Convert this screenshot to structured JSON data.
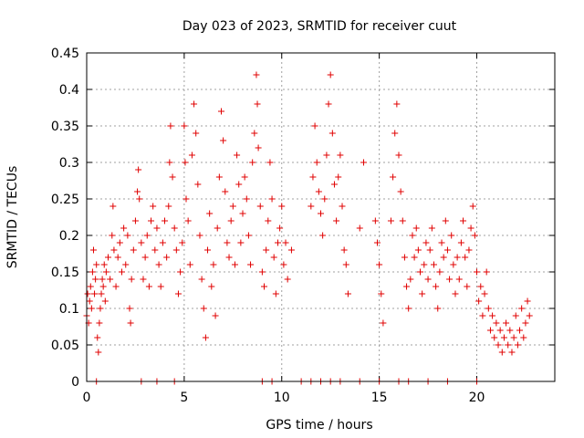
{
  "chart_data": {
    "type": "scatter",
    "title": "Day 023 of 2023, SRMTID for receiver cuut",
    "xlabel": "GPS time / hours",
    "ylabel": "SRMTID / TECUs",
    "xlim": [
      0,
      24
    ],
    "ylim": [
      0,
      0.45
    ],
    "xticks": [
      0,
      5,
      10,
      15,
      20
    ],
    "xtick_labels": [
      "0",
      "5",
      "10",
      "15",
      "20"
    ],
    "yticks": [
      0,
      0.05,
      0.1,
      0.15,
      0.2,
      0.25,
      0.3,
      0.35,
      0.4,
      0.45
    ],
    "ytick_labels": [
      "0",
      "0.05",
      "0.1",
      "0.15",
      "0.2",
      "0.25",
      "0.3",
      "0.35",
      "0.4",
      "0.45"
    ],
    "grid": true,
    "marker": "+",
    "color": "#e00000",
    "series": [
      {
        "name": "SRMTID",
        "points": [
          [
            0.0,
            0.09
          ],
          [
            0.05,
            0.12
          ],
          [
            0.1,
            0.08
          ],
          [
            0.15,
            0.11
          ],
          [
            0.2,
            0.13
          ],
          [
            0.25,
            0.1
          ],
          [
            0.3,
            0.15
          ],
          [
            0.35,
            0.18
          ],
          [
            0.4,
            0.12
          ],
          [
            0.45,
            0.14
          ],
          [
            0.5,
            0.16
          ],
          [
            0.55,
            0.06
          ],
          [
            0.6,
            0.04
          ],
          [
            0.65,
            0.08
          ],
          [
            0.7,
            0.1
          ],
          [
            0.75,
            0.12
          ],
          [
            0.8,
            0.14
          ],
          [
            0.85,
            0.13
          ],
          [
            0.9,
            0.16
          ],
          [
            0.95,
            0.11
          ],
          [
            1.0,
            0.15
          ],
          [
            1.1,
            0.17
          ],
          [
            1.2,
            0.14
          ],
          [
            1.3,
            0.2
          ],
          [
            1.35,
            0.24
          ],
          [
            1.4,
            0.18
          ],
          [
            1.5,
            0.13
          ],
          [
            1.6,
            0.17
          ],
          [
            1.7,
            0.19
          ],
          [
            1.8,
            0.15
          ],
          [
            1.9,
            0.21
          ],
          [
            2.0,
            0.16
          ],
          [
            2.1,
            0.2
          ],
          [
            2.2,
            0.1
          ],
          [
            2.25,
            0.08
          ],
          [
            2.3,
            0.14
          ],
          [
            2.4,
            0.18
          ],
          [
            2.5,
            0.22
          ],
          [
            2.6,
            0.26
          ],
          [
            2.65,
            0.29
          ],
          [
            2.7,
            0.25
          ],
          [
            2.8,
            0.19
          ],
          [
            2.9,
            0.14
          ],
          [
            3.0,
            0.17
          ],
          [
            3.1,
            0.2
          ],
          [
            3.2,
            0.13
          ],
          [
            3.3,
            0.22
          ],
          [
            3.4,
            0.24
          ],
          [
            3.5,
            0.18
          ],
          [
            3.6,
            0.21
          ],
          [
            3.7,
            0.16
          ],
          [
            3.8,
            0.13
          ],
          [
            3.9,
            0.19
          ],
          [
            4.0,
            0.22
          ],
          [
            4.1,
            0.17
          ],
          [
            4.2,
            0.24
          ],
          [
            4.25,
            0.3
          ],
          [
            4.3,
            0.35
          ],
          [
            4.4,
            0.28
          ],
          [
            4.5,
            0.21
          ],
          [
            4.6,
            0.18
          ],
          [
            4.7,
            0.12
          ],
          [
            4.8,
            0.15
          ],
          [
            4.9,
            0.19
          ],
          [
            5.0,
            0.35
          ],
          [
            5.05,
            0.3
          ],
          [
            5.1,
            0.25
          ],
          [
            5.2,
            0.22
          ],
          [
            5.3,
            0.16
          ],
          [
            5.4,
            0.31
          ],
          [
            5.5,
            0.38
          ],
          [
            5.6,
            0.34
          ],
          [
            5.7,
            0.27
          ],
          [
            5.8,
            0.2
          ],
          [
            5.9,
            0.14
          ],
          [
            6.0,
            0.1
          ],
          [
            6.1,
            0.06
          ],
          [
            6.2,
            0.18
          ],
          [
            6.3,
            0.23
          ],
          [
            6.4,
            0.13
          ],
          [
            6.5,
            0.16
          ],
          [
            6.6,
            0.09
          ],
          [
            6.7,
            0.21
          ],
          [
            6.8,
            0.28
          ],
          [
            6.9,
            0.37
          ],
          [
            7.0,
            0.33
          ],
          [
            7.1,
            0.26
          ],
          [
            7.2,
            0.19
          ],
          [
            7.3,
            0.17
          ],
          [
            7.4,
            0.22
          ],
          [
            7.5,
            0.24
          ],
          [
            7.6,
            0.16
          ],
          [
            7.7,
            0.31
          ],
          [
            7.8,
            0.27
          ],
          [
            7.9,
            0.19
          ],
          [
            8.0,
            0.23
          ],
          [
            8.1,
            0.28
          ],
          [
            8.2,
            0.25
          ],
          [
            8.3,
            0.2
          ],
          [
            8.4,
            0.16
          ],
          [
            8.5,
            0.3
          ],
          [
            8.6,
            0.34
          ],
          [
            8.7,
            0.42
          ],
          [
            8.75,
            0.38
          ],
          [
            8.8,
            0.32
          ],
          [
            8.9,
            0.24
          ],
          [
            9.0,
            0.15
          ],
          [
            9.1,
            0.13
          ],
          [
            9.2,
            0.18
          ],
          [
            9.3,
            0.22
          ],
          [
            9.4,
            0.3
          ],
          [
            9.5,
            0.25
          ],
          [
            9.6,
            0.17
          ],
          [
            9.7,
            0.12
          ],
          [
            9.8,
            0.19
          ],
          [
            9.9,
            0.21
          ],
          [
            10.0,
            0.24
          ],
          [
            10.1,
            0.16
          ],
          [
            10.2,
            0.19
          ],
          [
            10.3,
            0.14
          ],
          [
            10.5,
            0.18
          ],
          [
            11.5,
            0.24
          ],
          [
            11.6,
            0.28
          ],
          [
            11.7,
            0.35
          ],
          [
            11.8,
            0.3
          ],
          [
            11.9,
            0.26
          ],
          [
            12.0,
            0.23
          ],
          [
            12.1,
            0.2
          ],
          [
            12.2,
            0.25
          ],
          [
            12.3,
            0.31
          ],
          [
            12.4,
            0.38
          ],
          [
            12.5,
            0.42
          ],
          [
            12.6,
            0.34
          ],
          [
            12.7,
            0.27
          ],
          [
            12.8,
            0.22
          ],
          [
            12.9,
            0.28
          ],
          [
            13.0,
            0.31
          ],
          [
            13.1,
            0.24
          ],
          [
            13.2,
            0.18
          ],
          [
            13.3,
            0.16
          ],
          [
            13.4,
            0.12
          ],
          [
            14.0,
            0.21
          ],
          [
            14.2,
            0.3
          ],
          [
            14.8,
            0.22
          ],
          [
            14.9,
            0.19
          ],
          [
            15.0,
            0.16
          ],
          [
            15.1,
            0.12
          ],
          [
            15.2,
            0.08
          ],
          [
            15.6,
            0.22
          ],
          [
            15.7,
            0.28
          ],
          [
            15.8,
            0.34
          ],
          [
            15.9,
            0.38
          ],
          [
            16.0,
            0.31
          ],
          [
            16.1,
            0.26
          ],
          [
            16.2,
            0.22
          ],
          [
            16.3,
            0.17
          ],
          [
            16.4,
            0.13
          ],
          [
            16.5,
            0.1
          ],
          [
            16.6,
            0.14
          ],
          [
            16.7,
            0.2
          ],
          [
            16.8,
            0.17
          ],
          [
            16.9,
            0.21
          ],
          [
            17.0,
            0.18
          ],
          [
            17.1,
            0.15
          ],
          [
            17.2,
            0.12
          ],
          [
            17.3,
            0.16
          ],
          [
            17.4,
            0.19
          ],
          [
            17.5,
            0.14
          ],
          [
            17.6,
            0.18
          ],
          [
            17.7,
            0.21
          ],
          [
            17.8,
            0.16
          ],
          [
            17.9,
            0.13
          ],
          [
            18.0,
            0.1
          ],
          [
            18.1,
            0.15
          ],
          [
            18.2,
            0.19
          ],
          [
            18.3,
            0.17
          ],
          [
            18.4,
            0.22
          ],
          [
            18.5,
            0.18
          ],
          [
            18.6,
            0.14
          ],
          [
            18.7,
            0.2
          ],
          [
            18.8,
            0.16
          ],
          [
            18.9,
            0.12
          ],
          [
            19.0,
            0.17
          ],
          [
            19.1,
            0.14
          ],
          [
            19.2,
            0.19
          ],
          [
            19.3,
            0.22
          ],
          [
            19.4,
            0.17
          ],
          [
            19.5,
            0.13
          ],
          [
            19.6,
            0.18
          ],
          [
            19.7,
            0.21
          ],
          [
            19.8,
            0.24
          ],
          [
            19.9,
            0.2
          ],
          [
            20.0,
            0.15
          ],
          [
            20.1,
            0.11
          ],
          [
            20.2,
            0.13
          ],
          [
            20.3,
            0.09
          ],
          [
            20.4,
            0.12
          ],
          [
            20.5,
            0.15
          ],
          [
            20.6,
            0.1
          ],
          [
            20.7,
            0.07
          ],
          [
            20.8,
            0.09
          ],
          [
            20.9,
            0.06
          ],
          [
            21.0,
            0.08
          ],
          [
            21.1,
            0.05
          ],
          [
            21.2,
            0.07
          ],
          [
            21.3,
            0.04
          ],
          [
            21.4,
            0.06
          ],
          [
            21.5,
            0.08
          ],
          [
            21.6,
            0.05
          ],
          [
            21.7,
            0.07
          ],
          [
            21.8,
            0.04
          ],
          [
            21.9,
            0.06
          ],
          [
            22.0,
            0.09
          ],
          [
            22.1,
            0.05
          ],
          [
            22.2,
            0.07
          ],
          [
            22.3,
            0.1
          ],
          [
            22.4,
            0.06
          ],
          [
            22.5,
            0.08
          ],
          [
            22.6,
            0.11
          ],
          [
            22.7,
            0.09
          ]
        ],
        "zero_points": [
          0.5,
          2.8,
          3.6,
          4.5,
          9.0,
          9.5,
          11.0,
          11.5,
          12.0,
          12.5,
          13.0,
          14.0,
          15.0,
          16.0,
          16.5,
          17.5,
          18.5,
          20.0
        ]
      }
    ]
  }
}
